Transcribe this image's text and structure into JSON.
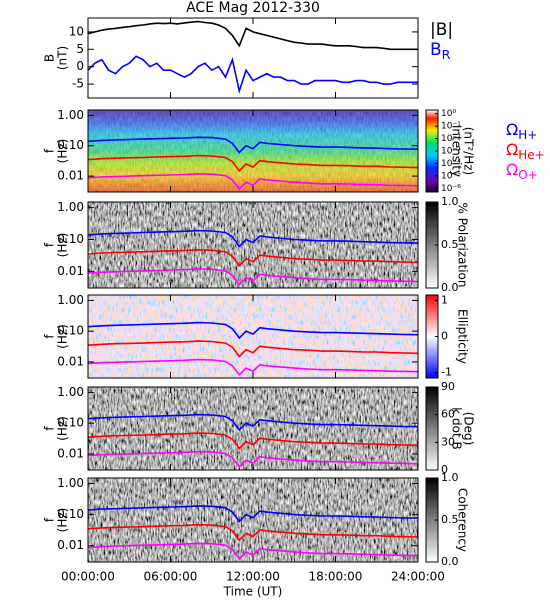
{
  "title": "ACE Mag 2012-330",
  "xlabel": "Time (UT)",
  "xlim": [
    0,
    24
  ],
  "xticks": [
    {
      "value": 0,
      "label": "00:00:00"
    },
    {
      "value": 6,
      "label": "06:00:00"
    },
    {
      "value": 12,
      "label": "12:00:00"
    },
    {
      "value": 18,
      "label": "18:00:00"
    },
    {
      "value": 24,
      "label": "24:00:00"
    }
  ],
  "cyclotron": {
    "x": [
      0,
      1,
      2,
      3,
      4,
      5,
      6,
      7,
      8,
      9,
      10,
      10.5,
      11,
      11.5,
      12,
      12.5,
      13,
      14,
      15,
      16,
      17,
      18,
      19,
      20,
      21,
      22,
      23,
      24
    ],
    "series": [
      {
        "name": "Ω",
        "subscript": "H+",
        "color": "#0000ff",
        "values": [
          0.14,
          0.15,
          0.155,
          0.16,
          0.165,
          0.17,
          0.175,
          0.18,
          0.19,
          0.185,
          0.165,
          0.12,
          0.06,
          0.1,
          0.08,
          0.13,
          0.12,
          0.11,
          0.1,
          0.095,
          0.09,
          0.09,
          0.088,
          0.085,
          0.083,
          0.08,
          0.078,
          0.077
        ]
      },
      {
        "name": "Ω",
        "subscript": "He+",
        "color": "#ff0000",
        "values": [
          0.035,
          0.0375,
          0.039,
          0.04,
          0.041,
          0.0425,
          0.044,
          0.045,
          0.0475,
          0.046,
          0.041,
          0.03,
          0.015,
          0.025,
          0.02,
          0.0325,
          0.03,
          0.0275,
          0.025,
          0.024,
          0.0225,
          0.0225,
          0.022,
          0.021,
          0.021,
          0.02,
          0.0195,
          0.019
        ]
      },
      {
        "name": "Ω",
        "subscript": "O+",
        "color": "#ff00ff",
        "values": [
          0.0088,
          0.0094,
          0.0097,
          0.01,
          0.0103,
          0.0106,
          0.0109,
          0.0113,
          0.0119,
          0.0116,
          0.0103,
          0.0075,
          0.0038,
          0.0063,
          0.005,
          0.0081,
          0.0075,
          0.0069,
          0.0063,
          0.0059,
          0.0056,
          0.0056,
          0.0055,
          0.0053,
          0.0052,
          0.005,
          0.0049,
          0.0048
        ]
      }
    ]
  },
  "chart_data": [
    {
      "type": "line",
      "ylabel": [
        "B",
        "(nT)"
      ],
      "ylim": [
        -9,
        14
      ],
      "yticks": [
        -5,
        0,
        5,
        10
      ],
      "x": [
        0,
        0.5,
        1,
        1.5,
        2,
        2.5,
        3,
        3.5,
        4,
        4.5,
        5,
        5.5,
        6,
        6.5,
        7,
        7.5,
        8,
        8.5,
        9,
        9.5,
        10,
        10.5,
        11,
        11.5,
        12,
        12.5,
        13,
        13.5,
        14,
        14.5,
        15,
        15.5,
        16,
        16.5,
        17,
        17.5,
        18,
        18.5,
        19,
        19.5,
        20,
        20.5,
        21,
        21.5,
        22,
        22.5,
        23,
        23.5,
        24
      ],
      "series": [
        {
          "name": "|B|",
          "color": "#000000",
          "values": [
            9.5,
            10,
            10.5,
            10.8,
            11,
            11.3,
            11.5,
            11.8,
            12,
            12.3,
            12.5,
            12.4,
            12.5,
            12.3,
            12.6,
            12.8,
            13,
            12.7,
            12.5,
            12,
            11,
            9,
            6,
            11,
            10,
            9.5,
            9,
            8.5,
            8,
            7.5,
            7,
            6.8,
            6.5,
            6.5,
            6.5,
            6.2,
            6,
            6,
            6,
            5.8,
            5.5,
            5.5,
            5.5,
            5.3,
            5,
            5,
            5,
            5,
            5
          ]
        },
        {
          "name": "B",
          "subscript": "R",
          "color": "#0000ff",
          "values": [
            -1,
            1,
            2,
            -1,
            -2,
            0,
            1,
            3,
            2,
            0,
            1,
            -1,
            -1,
            -2,
            -3,
            -2,
            0,
            1,
            -1,
            0,
            -3,
            2,
            -7,
            -1,
            -4,
            -3,
            -2,
            -3,
            -3,
            -4,
            -4,
            -5,
            -5,
            -4,
            -4,
            -4,
            -4,
            -4.5,
            -4.5,
            -4,
            -4,
            -4.5,
            -4.5,
            -5,
            -5,
            -4.5,
            -4.5,
            -4.5,
            -4.5
          ]
        }
      ]
    },
    {
      "type": "spectrogram",
      "colormap": "rainbow",
      "legend": "right",
      "ylabel": [
        "f",
        "(Hz)"
      ],
      "log_y": true,
      "ylim": [
        0.003,
        1.5
      ],
      "yticks": [
        {
          "value": 1,
          "label": "1.00"
        },
        {
          "value": 0.1,
          "label": "0.10"
        },
        {
          "value": 0.01,
          "label": "0.01"
        }
      ],
      "colorbar_label": [
        "Intensity",
        "(nT²/Hz)"
      ],
      "clog": true,
      "clim": [
        5e-07,
        2
      ],
      "cticks": [
        {
          "value": 1,
          "label": "10⁰"
        },
        {
          "value": 0.1,
          "label": "10⁻¹"
        },
        {
          "value": 0.01,
          "label": "10⁻²"
        },
        {
          "value": 0.001,
          "label": "10⁻³"
        },
        {
          "value": 0.0001,
          "label": "10⁻⁴"
        },
        {
          "value": 1e-05,
          "label": "10⁻⁵"
        },
        {
          "value": 1e-06,
          "label": "10⁻⁶"
        }
      ]
    },
    {
      "type": "spectrogram",
      "colormap": "gray",
      "ylabel": [
        "f",
        "(Hz)"
      ],
      "log_y": true,
      "ylim": [
        0.003,
        1.5
      ],
      "yticks": [
        {
          "value": 1,
          "label": "1.00"
        },
        {
          "value": 0.1,
          "label": "0.10"
        },
        {
          "value": 0.01,
          "label": "0.01"
        }
      ],
      "colorbar_label": [
        "% Polarization"
      ],
      "clim": [
        0,
        1
      ],
      "cticks": [
        {
          "value": 0,
          "label": "0.0"
        },
        {
          "value": 0.5,
          "label": "0.5"
        },
        {
          "value": 1,
          "label": "1.0"
        }
      ]
    },
    {
      "type": "spectrogram",
      "colormap": "redblue",
      "ylabel": [
        "f",
        "(Hz)"
      ],
      "log_y": true,
      "ylim": [
        0.003,
        1.5
      ],
      "yticks": [
        {
          "value": 1,
          "label": "1.00"
        },
        {
          "value": 0.1,
          "label": "0.10"
        },
        {
          "value": 0.01,
          "label": "0.01"
        }
      ],
      "colorbar_label": [
        "Ellipticity"
      ],
      "clim": [
        -1.15,
        1.15
      ],
      "cticks": [
        -1,
        0,
        1
      ]
    },
    {
      "type": "spectrogram",
      "colormap": "gray",
      "ylabel": [
        "f",
        "(Hz)"
      ],
      "log_y": true,
      "ylim": [
        0.003,
        1.5
      ],
      "yticks": [
        {
          "value": 1,
          "label": "1.00"
        },
        {
          "value": 0.1,
          "label": "0.10"
        },
        {
          "value": 0.01,
          "label": "0.01"
        }
      ],
      "colorbar_label": [
        "k dot B",
        "(Deg)"
      ],
      "clim": [
        0,
        90
      ],
      "cticks": [
        0,
        30,
        60,
        90
      ]
    },
    {
      "type": "spectrogram",
      "colormap": "gray",
      "ylabel": [
        "f",
        "(Hz)"
      ],
      "log_y": true,
      "ylim": [
        0.003,
        1.5
      ],
      "yticks": [
        {
          "value": 1,
          "label": "1.00"
        },
        {
          "value": 0.1,
          "label": "0.10"
        },
        {
          "value": 0.01,
          "label": "0.01"
        }
      ],
      "colorbar_label": [
        "Coherency"
      ],
      "clim": [
        0,
        1
      ],
      "cticks": [
        {
          "value": 0,
          "label": "0.0"
        },
        {
          "value": 0.5,
          "label": "0.5"
        },
        {
          "value": 1,
          "label": "1.0"
        }
      ]
    }
  ]
}
